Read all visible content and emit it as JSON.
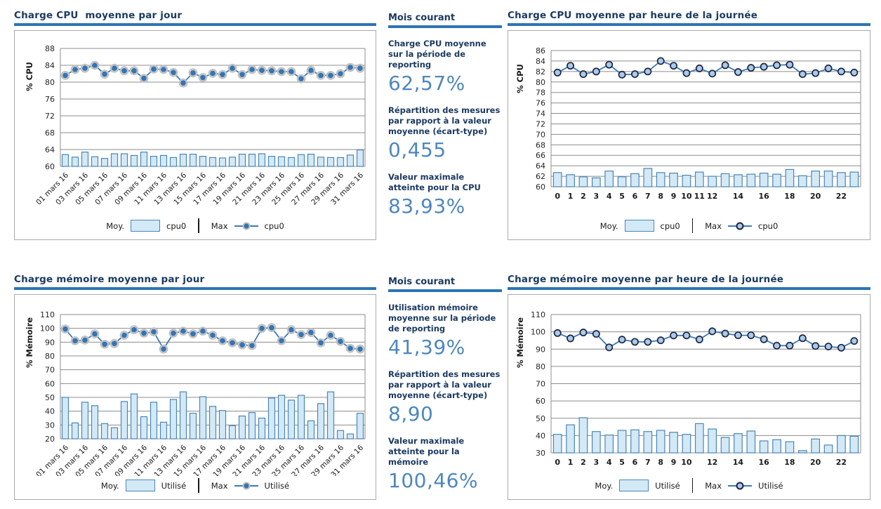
{
  "colors": {
    "title_text": "#1b3a61",
    "title_rule": "#2e74b5",
    "stat_value": "#4e87be",
    "bar_fill": "#d3e9f6",
    "bar_stroke": "#4a86b8",
    "line": "#3d7ab8",
    "marker_daily_fill": "#3574b3",
    "marker_daily_halo": "#c2c2c2",
    "marker_hourly_fill": "#a9cbe8",
    "marker_hourly_stroke": "#1d2440",
    "grid": "#8c8c8c",
    "tick_text": "#262626"
  },
  "stats_panels": [
    {
      "heading": "Mois courant",
      "items": [
        {
          "label": "Charge CPU moyenne sur la période de reporting",
          "value": "62,57%"
        },
        {
          "label": "Répartition des mesures par rapport à la valeur moyenne (écart-type)",
          "value": "0,455"
        },
        {
          "label": "Valeur maximale atteinte pour la CPU",
          "value": "83,93%"
        }
      ]
    },
    {
      "heading": "Mois courant",
      "items": [
        {
          "label": "Utilisation mémoire moyenne sur la période de reporting",
          "value": "41,39%"
        },
        {
          "label": "Répartition des mesures par rapport à la valeur moyenne (écart-type)",
          "value": "8,90"
        },
        {
          "label": "Valeur maximale atteinte pour la mémoire",
          "value": "100,46%"
        }
      ]
    }
  ],
  "chart_data": [
    {
      "type": "bar+line",
      "title": "Charge CPU  moyenne par jour",
      "ylabel": "% CPU",
      "ylim": [
        60,
        88
      ],
      "ytick_step": 4,
      "x_rotated": true,
      "marker_style": "daily",
      "categories": [
        "01 mars 16",
        "",
        "03 mars 16",
        "",
        "05 mars 16",
        "",
        "07 mars 16",
        "",
        "09 mars 16",
        "",
        "11 mars 16",
        "",
        "13 mars 16",
        "",
        "15 mars 16",
        "",
        "17 mars 16",
        "",
        "19 mars 16",
        "",
        "21 mars 16",
        "",
        "23 mars 16",
        "",
        "25 mars 16",
        "",
        "27 mars 16",
        "",
        "29 mars 16",
        "",
        "31 mars 16"
      ],
      "series": [
        {
          "name": "cpu0",
          "role": "Moy.",
          "type": "bar",
          "values": [
            62.8,
            62.2,
            63.4,
            62.3,
            61.9,
            63.0,
            63.0,
            62.6,
            63.4,
            62.4,
            62.6,
            62.1,
            62.9,
            62.9,
            62.4,
            62.1,
            62.0,
            62.2,
            62.9,
            62.9,
            63.0,
            62.4,
            62.3,
            62.1,
            62.8,
            62.9,
            62.2,
            62.1,
            62.1,
            62.7,
            63.9
          ]
        },
        {
          "name": "cpu0",
          "role": "Max",
          "type": "line",
          "values": [
            81.6,
            83.0,
            83.3,
            84.0,
            81.9,
            83.3,
            82.7,
            82.7,
            80.9,
            83.1,
            83.0,
            82.3,
            79.8,
            82.2,
            81.1,
            82.1,
            81.8,
            83.3,
            81.8,
            83.0,
            82.8,
            82.7,
            82.5,
            82.5,
            80.8,
            82.8,
            81.6,
            81.6,
            82.0,
            83.5,
            83.3
          ]
        }
      ],
      "legend": {
        "bar_prefix": "Moy.",
        "bar_label": "cpu0",
        "line_prefix": "Max",
        "line_label": "cpu0"
      }
    },
    {
      "type": "bar+line",
      "title": "Charge CPU moyenne par heure de la journée",
      "ylabel": "% CPU",
      "ylim": [
        60,
        86
      ],
      "ytick_step": 2,
      "x_rotated": false,
      "marker_style": "hourly",
      "categories": [
        "0",
        "1",
        "2",
        "3",
        "4",
        "5",
        "6",
        "7",
        "8",
        "9",
        "10",
        "11",
        "12",
        "",
        "14",
        "",
        "16",
        "",
        "18",
        "",
        "20",
        "",
        "22",
        ""
      ],
      "series": [
        {
          "name": "cpu0",
          "role": "Moy.",
          "type": "bar",
          "values": [
            62.7,
            62.3,
            61.9,
            61.7,
            63.0,
            61.9,
            62.5,
            63.5,
            62.7,
            62.6,
            62.2,
            62.8,
            62.0,
            62.5,
            62.3,
            62.4,
            62.6,
            62.4,
            63.3,
            62.1,
            63.0,
            63.0,
            62.7,
            62.8
          ]
        },
        {
          "name": "cpu0",
          "role": "Max",
          "type": "line",
          "values": [
            81.8,
            83.1,
            81.5,
            82.0,
            83.3,
            81.4,
            81.5,
            82.0,
            84.0,
            83.1,
            81.7,
            82.6,
            81.6,
            83.2,
            81.9,
            82.7,
            82.9,
            83.2,
            83.3,
            81.5,
            81.7,
            82.6,
            82.0,
            81.8
          ]
        }
      ],
      "legend": {
        "bar_prefix": "Moy.",
        "bar_label": "cpu0",
        "line_prefix": "Max",
        "line_label": "cpu0"
      }
    },
    {
      "type": "bar+line",
      "title": "Charge mémoire moyenne par jour",
      "ylabel": "% Mémoire",
      "ylim": [
        20,
        110
      ],
      "ytick_step": 10,
      "x_rotated": true,
      "marker_style": "daily",
      "categories": [
        "01 mars 16",
        "",
        "03 mars 16",
        "",
        "05 mars 16",
        "",
        "07 mars 16",
        "",
        "09 mars 16",
        "",
        "11 mars 16",
        "",
        "13 mars 16",
        "",
        "15 mars 16",
        "",
        "17 mars 16",
        "",
        "19 mars 16",
        "",
        "21 mars 16",
        "",
        "23 mars 16",
        "",
        "25 mars 16",
        "",
        "27 mars 16",
        "",
        "29 mars 16",
        "",
        "31 mars 16"
      ],
      "series": [
        {
          "name": "Utilisé",
          "role": "Moy.",
          "type": "bar",
          "values": [
            50,
            31.5,
            46.5,
            44,
            31,
            28,
            47,
            52.5,
            36,
            46.5,
            32,
            48.5,
            54,
            38.5,
            50.5,
            43.5,
            40.5,
            29.5,
            36.5,
            39,
            35,
            49.5,
            51.5,
            48,
            51.5,
            33,
            45.5,
            54,
            26,
            23.5,
            38.5
          ]
        },
        {
          "name": "Utilisé",
          "role": "Max",
          "type": "line",
          "values": [
            99.5,
            91,
            91.5,
            96,
            88.5,
            89,
            95,
            99,
            96.5,
            97.5,
            85,
            96.5,
            98,
            96,
            98,
            95,
            91,
            89.5,
            88,
            87.5,
            100,
            100.5,
            91,
            99,
            95.5,
            97,
            89.5,
            95,
            90.5,
            85.5,
            85
          ]
        }
      ],
      "legend": {
        "bar_prefix": "Moy.",
        "bar_label": "Utilisé",
        "line_prefix": "Max",
        "line_label": "Utilisé"
      }
    },
    {
      "type": "bar+line",
      "title": "Charge mémoire moyenne par heure de la journée",
      "ylabel": "% Mémoire",
      "ylim": [
        30,
        110
      ],
      "ytick_step": 10,
      "x_rotated": false,
      "marker_style": "hourly",
      "categories": [
        "0",
        "1",
        "2",
        "3",
        "4",
        "5",
        "6",
        "7",
        "8",
        "9",
        "10",
        "",
        "12",
        "",
        "14",
        "",
        "16",
        "",
        "18",
        "",
        "20",
        "",
        "22",
        ""
      ],
      "series": [
        {
          "name": "Utilisé",
          "role": "Moy.",
          "type": "bar",
          "values": [
            40.7,
            46.2,
            50.3,
            42.3,
            40.3,
            43.0,
            43.3,
            42.3,
            43.0,
            41.9,
            40.7,
            46.9,
            43.8,
            38.9,
            41.1,
            42.6,
            36.9,
            37.6,
            36.4,
            31.3,
            38.0,
            34.5,
            40.0,
            39.6
          ]
        },
        {
          "name": "Utilisé",
          "role": "Max",
          "type": "line",
          "values": [
            99.3,
            96.2,
            99.6,
            98.8,
            91.0,
            95.5,
            94.2,
            94.2,
            95.1,
            97.9,
            97.9,
            95.6,
            100.3,
            99.0,
            98.0,
            98.0,
            95.7,
            92.0,
            92.0,
            96.3,
            91.8,
            91.5,
            90.8,
            94.7
          ]
        }
      ],
      "legend": {
        "bar_prefix": "Moy.",
        "bar_label": "Utilisé",
        "line_prefix": "Max",
        "line_label": "Utilisé"
      }
    }
  ]
}
